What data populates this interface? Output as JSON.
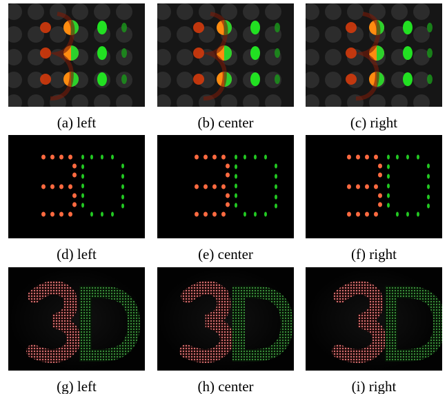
{
  "figure": {
    "panels": [
      {
        "caption": "(a) left"
      },
      {
        "caption": "(b) center"
      },
      {
        "caption": "(c) right"
      },
      {
        "caption": "(d) left"
      },
      {
        "caption": "(e) center"
      },
      {
        "caption": "(f) right"
      },
      {
        "caption": "(g) left"
      },
      {
        "caption": "(h) center"
      },
      {
        "caption": "(i) right"
      }
    ]
  }
}
